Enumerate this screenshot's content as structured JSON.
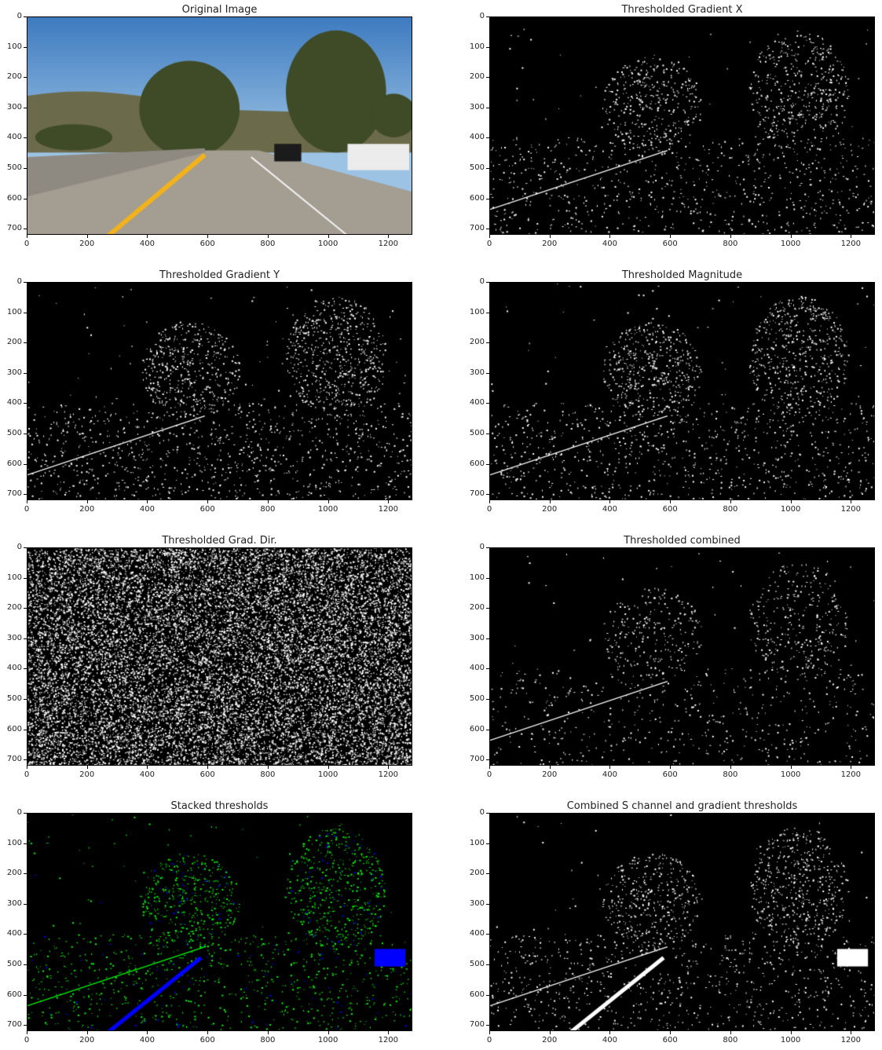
{
  "figure": {
    "panels": [
      {
        "id": "original",
        "title": "Original Image",
        "kind": "photo"
      },
      {
        "id": "grad-x",
        "title": "Thresholded Gradient X",
        "kind": "binary",
        "density": 0.1
      },
      {
        "id": "grad-y",
        "title": "Thresholded Gradient Y",
        "kind": "binary",
        "density": 0.13
      },
      {
        "id": "magnitude",
        "title": "Thresholded Magnitude",
        "kind": "binary",
        "density": 0.12
      },
      {
        "id": "direction",
        "title": "Thresholded Grad. Dir.",
        "kind": "noise",
        "density": 0.35
      },
      {
        "id": "combined",
        "title": "Thresholded combined",
        "kind": "binary",
        "density": 0.07
      },
      {
        "id": "stacked",
        "title": "Stacked thresholds",
        "kind": "stacked",
        "density": 0.11
      },
      {
        "id": "s-channel-combined",
        "title": "Combined S channel and gradient thresholds",
        "kind": "binary-lane",
        "density": 0.1
      }
    ],
    "x_ticks": [
      "0",
      "200",
      "400",
      "600",
      "800",
      "1000",
      "1200"
    ],
    "y_ticks": [
      "0",
      "100",
      "200",
      "300",
      "400",
      "500",
      "600",
      "700"
    ],
    "x_range": [
      0,
      1280
    ],
    "y_range": [
      0,
      720
    ],
    "colors": {
      "edge_white": "#ffffff",
      "background": "#000000",
      "stacked_green": "#00ff00",
      "stacked_blue": "#0000ff",
      "sky": "#4a86c4",
      "road": "#a39d92",
      "lane_yellow": "#f2b21c",
      "trees": "#3f4a26"
    }
  }
}
